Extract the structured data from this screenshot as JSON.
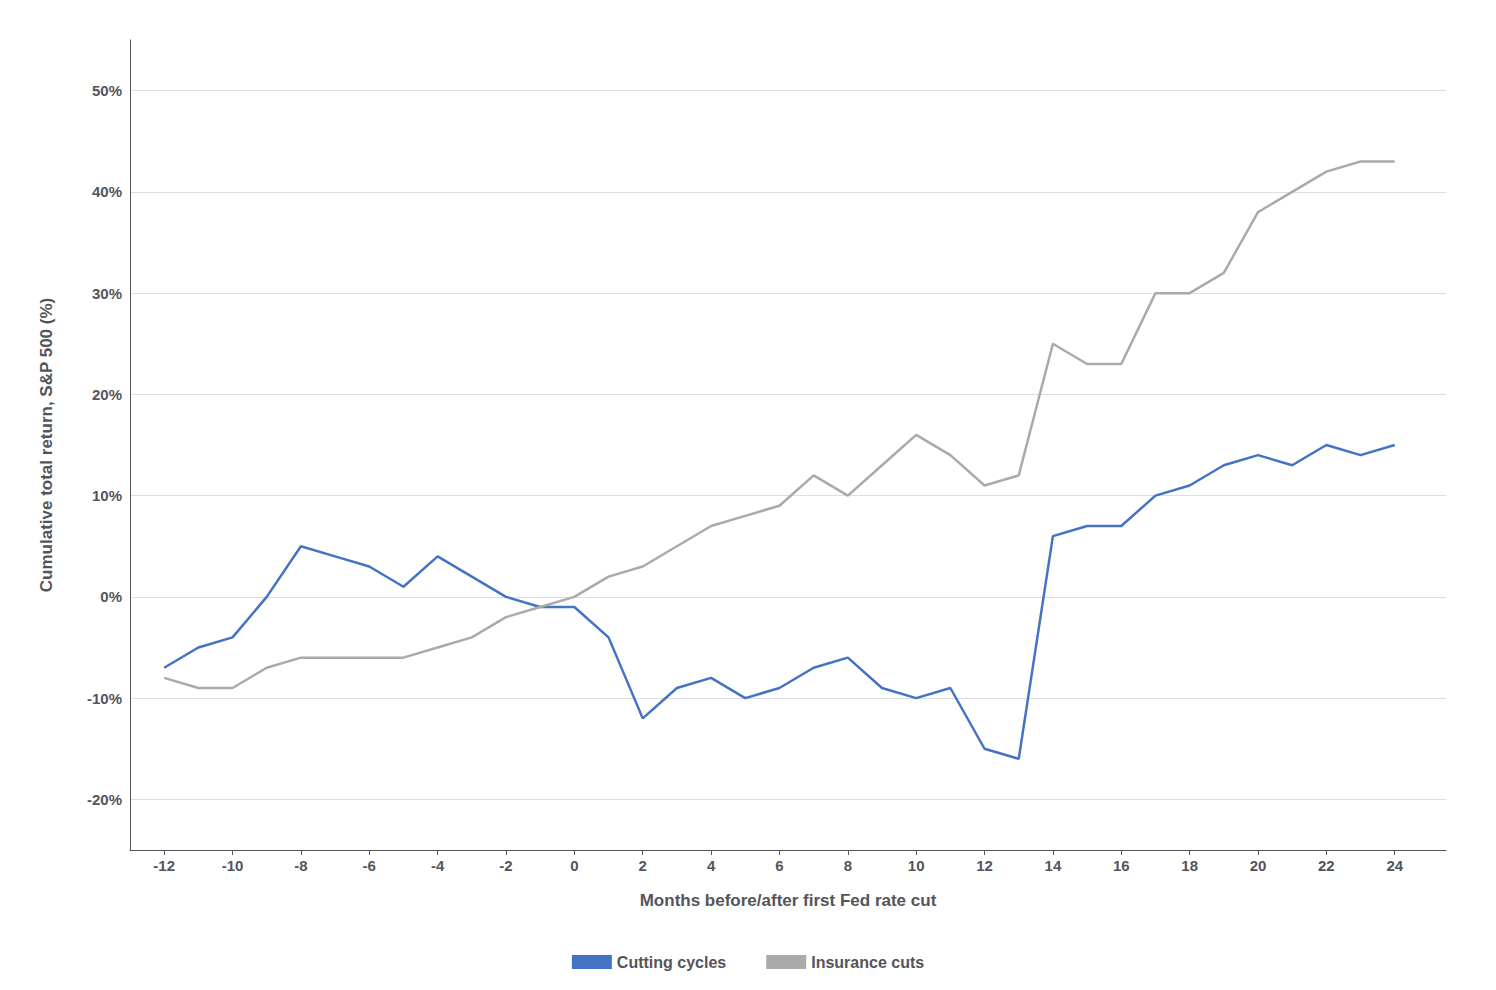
{
  "chart_data": {
    "type": "line",
    "x": [
      -12,
      -11,
      -10,
      -9,
      -8,
      -7,
      -6,
      -5,
      -4,
      -3,
      -2,
      -1,
      0,
      1,
      2,
      3,
      4,
      5,
      6,
      7,
      8,
      9,
      10,
      11,
      12,
      13,
      14,
      15,
      16,
      17,
      18,
      19,
      20,
      21,
      22,
      23,
      24
    ],
    "series": [
      {
        "name": "Cutting cycles",
        "color": "#4472C4",
        "values": [
          -7,
          -5,
          -4,
          0,
          5,
          4,
          3,
          1,
          4,
          2,
          0,
          -1,
          -1,
          -4,
          -12,
          -9,
          -8,
          -10,
          -9,
          -7,
          -6,
          -9,
          -10,
          -9,
          -15,
          -16,
          6,
          7,
          7,
          10,
          11,
          13,
          14,
          13,
          15,
          14,
          15
        ]
      },
      {
        "name": "Insurance cuts",
        "color": "#AAAAAA",
        "values": [
          -8,
          -9,
          -9,
          -7,
          -6,
          -6,
          -6,
          -6,
          -5,
          -4,
          -2,
          -1,
          0,
          2,
          3,
          5,
          7,
          8,
          9,
          12,
          10,
          13,
          16,
          14,
          11,
          12,
          25,
          23,
          23,
          30,
          30,
          32,
          38,
          40,
          42,
          43,
          43
        ]
      }
    ],
    "xlabel": "Months before/after first Fed rate cut",
    "ylabel": "Cumulative total return, S&P 500 (%)",
    "xlim": [
      -13,
      25.5
    ],
    "ylim": [
      -25,
      55
    ],
    "xticks": [
      -12,
      -10,
      -8,
      -6,
      -4,
      -2,
      0,
      2,
      4,
      6,
      8,
      10,
      12,
      14,
      16,
      18,
      20,
      22,
      24
    ],
    "yticks": [
      {
        "value": -20,
        "label": "-20%"
      },
      {
        "value": -10,
        "label": "-10%"
      },
      {
        "value": 0,
        "label": "0%"
      },
      {
        "value": 10,
        "label": "10%"
      },
      {
        "value": 20,
        "label": "20%"
      },
      {
        "value": 30,
        "label": "30%"
      },
      {
        "value": 40,
        "label": "40%"
      },
      {
        "value": 50,
        "label": "50%"
      }
    ],
    "grid": "y",
    "legend": "bottom"
  }
}
